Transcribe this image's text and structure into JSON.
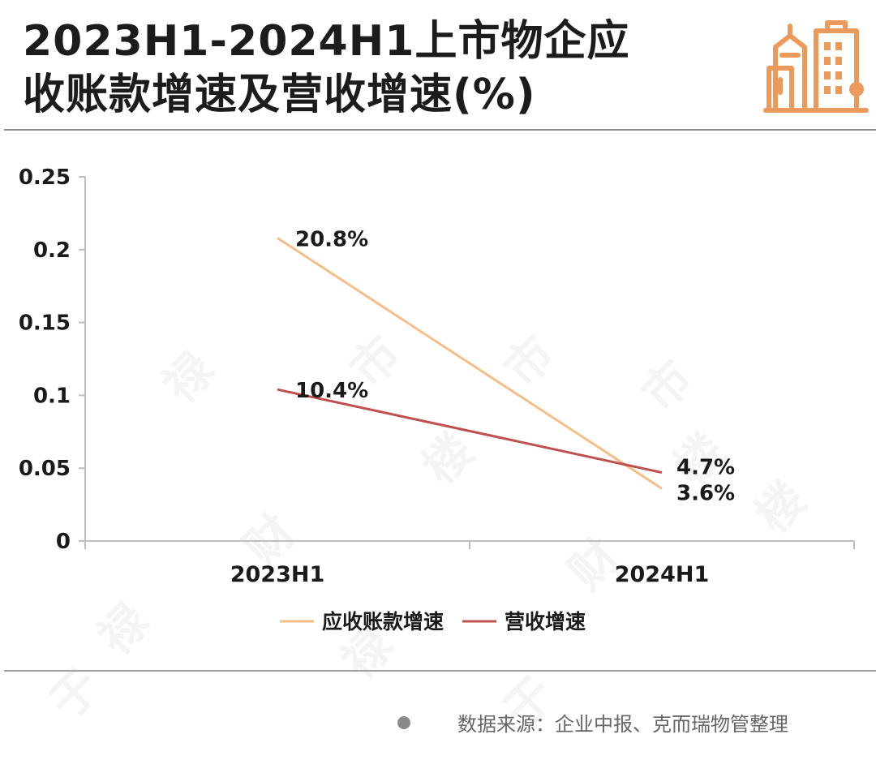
{
  "header": {
    "title_line1": "2023H1-2024H1上市物企应",
    "title_line2": "收账款增速及营收增速(%)",
    "logo_icon": "city-buildings-icon"
  },
  "colors": {
    "receivables": "#F5BE88",
    "revenue": "#C0504D",
    "logo": "#EC9A5B",
    "axis": "#BFBFBF"
  },
  "chart_data": {
    "type": "line",
    "title": "",
    "xlabel": "",
    "ylabel": "",
    "categories": [
      "2023H1",
      "2024H1"
    ],
    "ylim": [
      0,
      0.25
    ],
    "yticks": [
      0,
      0.05,
      0.1,
      0.15,
      0.2,
      0.25
    ],
    "ytick_labels": [
      "0",
      "0.05",
      "0.1",
      "0.15",
      "0.2",
      "0.25"
    ],
    "series": [
      {
        "name": "应收账款增速",
        "values": [
          0.208,
          0.036
        ],
        "labels": [
          "20.8%",
          "3.6%"
        ],
        "color": "#F5BE88"
      },
      {
        "name": "营收增速",
        "values": [
          0.104,
          0.047
        ],
        "labels": [
          "10.4%",
          "4.7%"
        ],
        "color": "#C0504D"
      }
    ],
    "legend": "bottom-center",
    "grid": false
  },
  "footer": {
    "source": "数据来源：企业中报、克而瑞物管整理"
  }
}
